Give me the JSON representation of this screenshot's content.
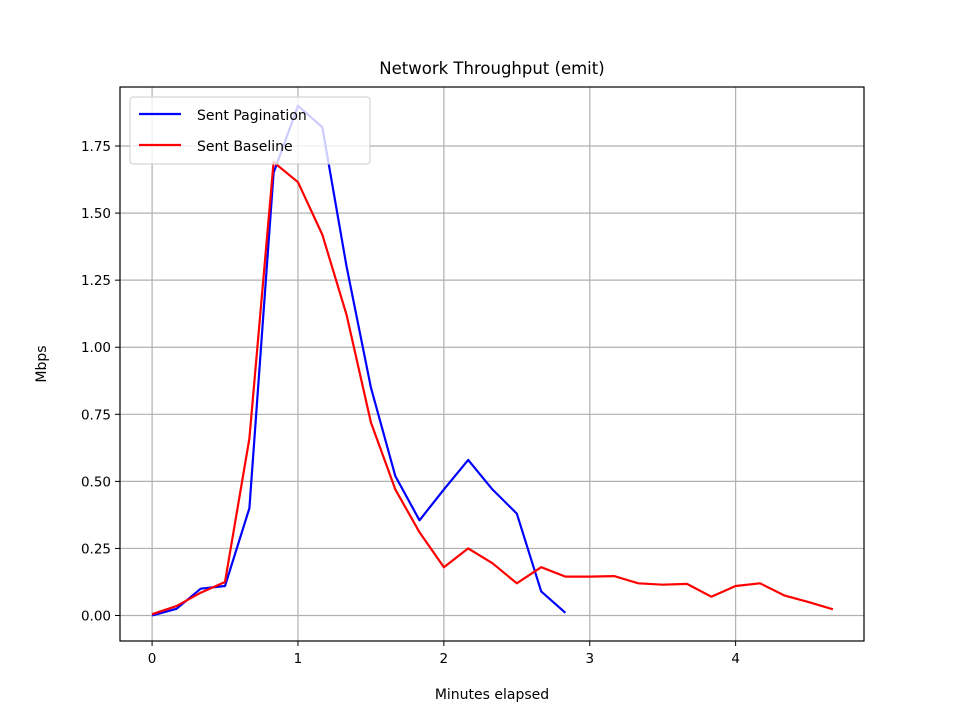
{
  "chart_data": {
    "type": "line",
    "title": "Network Throughput (emit)",
    "xlabel": "Minutes elapsed",
    "ylabel": "Mbps",
    "xlim": [
      -0.22,
      4.88
    ],
    "ylim": [
      -0.095,
      1.97
    ],
    "xticks": [
      0,
      1,
      2,
      3,
      4
    ],
    "xtick_labels": [
      "0",
      "1",
      "2",
      "3",
      "4"
    ],
    "yticks": [
      0,
      0.25,
      0.5,
      0.75,
      1.0,
      1.25,
      1.5,
      1.75
    ],
    "ytick_labels": [
      "0.00",
      "0.25",
      "0.50",
      "0.75",
      "1.00",
      "1.25",
      "1.50",
      "1.75"
    ],
    "grid": true,
    "legend_position": "top-left",
    "series": [
      {
        "name": "Sent Pagination",
        "color": "#0000ff",
        "x": [
          0,
          0.167,
          0.333,
          0.5,
          0.667,
          0.833,
          1.0,
          1.167,
          1.333,
          1.5,
          1.667,
          1.833,
          2.0,
          2.167,
          2.333,
          2.5,
          2.667,
          2.833
        ],
        "y": [
          0.0,
          0.025,
          0.1,
          0.11,
          0.4,
          1.65,
          1.9,
          1.82,
          1.3,
          0.85,
          0.52,
          0.355,
          0.47,
          0.58,
          0.47,
          0.38,
          0.09,
          0.01
        ]
      },
      {
        "name": "Sent Baseline",
        "color": "#ff0000",
        "x": [
          0,
          0.167,
          0.333,
          0.5,
          0.667,
          0.833,
          1.0,
          1.167,
          1.333,
          1.5,
          1.667,
          1.833,
          2.0,
          2.167,
          2.333,
          2.5,
          2.667,
          2.833,
          3.0,
          3.167,
          3.333,
          3.5,
          3.667,
          3.833,
          4.0,
          4.167,
          4.333,
          4.5,
          4.667
        ],
        "y": [
          0.005,
          0.035,
          0.085,
          0.125,
          0.66,
          1.69,
          1.615,
          1.42,
          1.12,
          0.72,
          0.47,
          0.31,
          0.18,
          0.25,
          0.195,
          0.12,
          0.18,
          0.145,
          0.145,
          0.147,
          0.12,
          0.115,
          0.118,
          0.07,
          0.11,
          0.12,
          0.075,
          0.05,
          0.023
        ]
      }
    ]
  }
}
